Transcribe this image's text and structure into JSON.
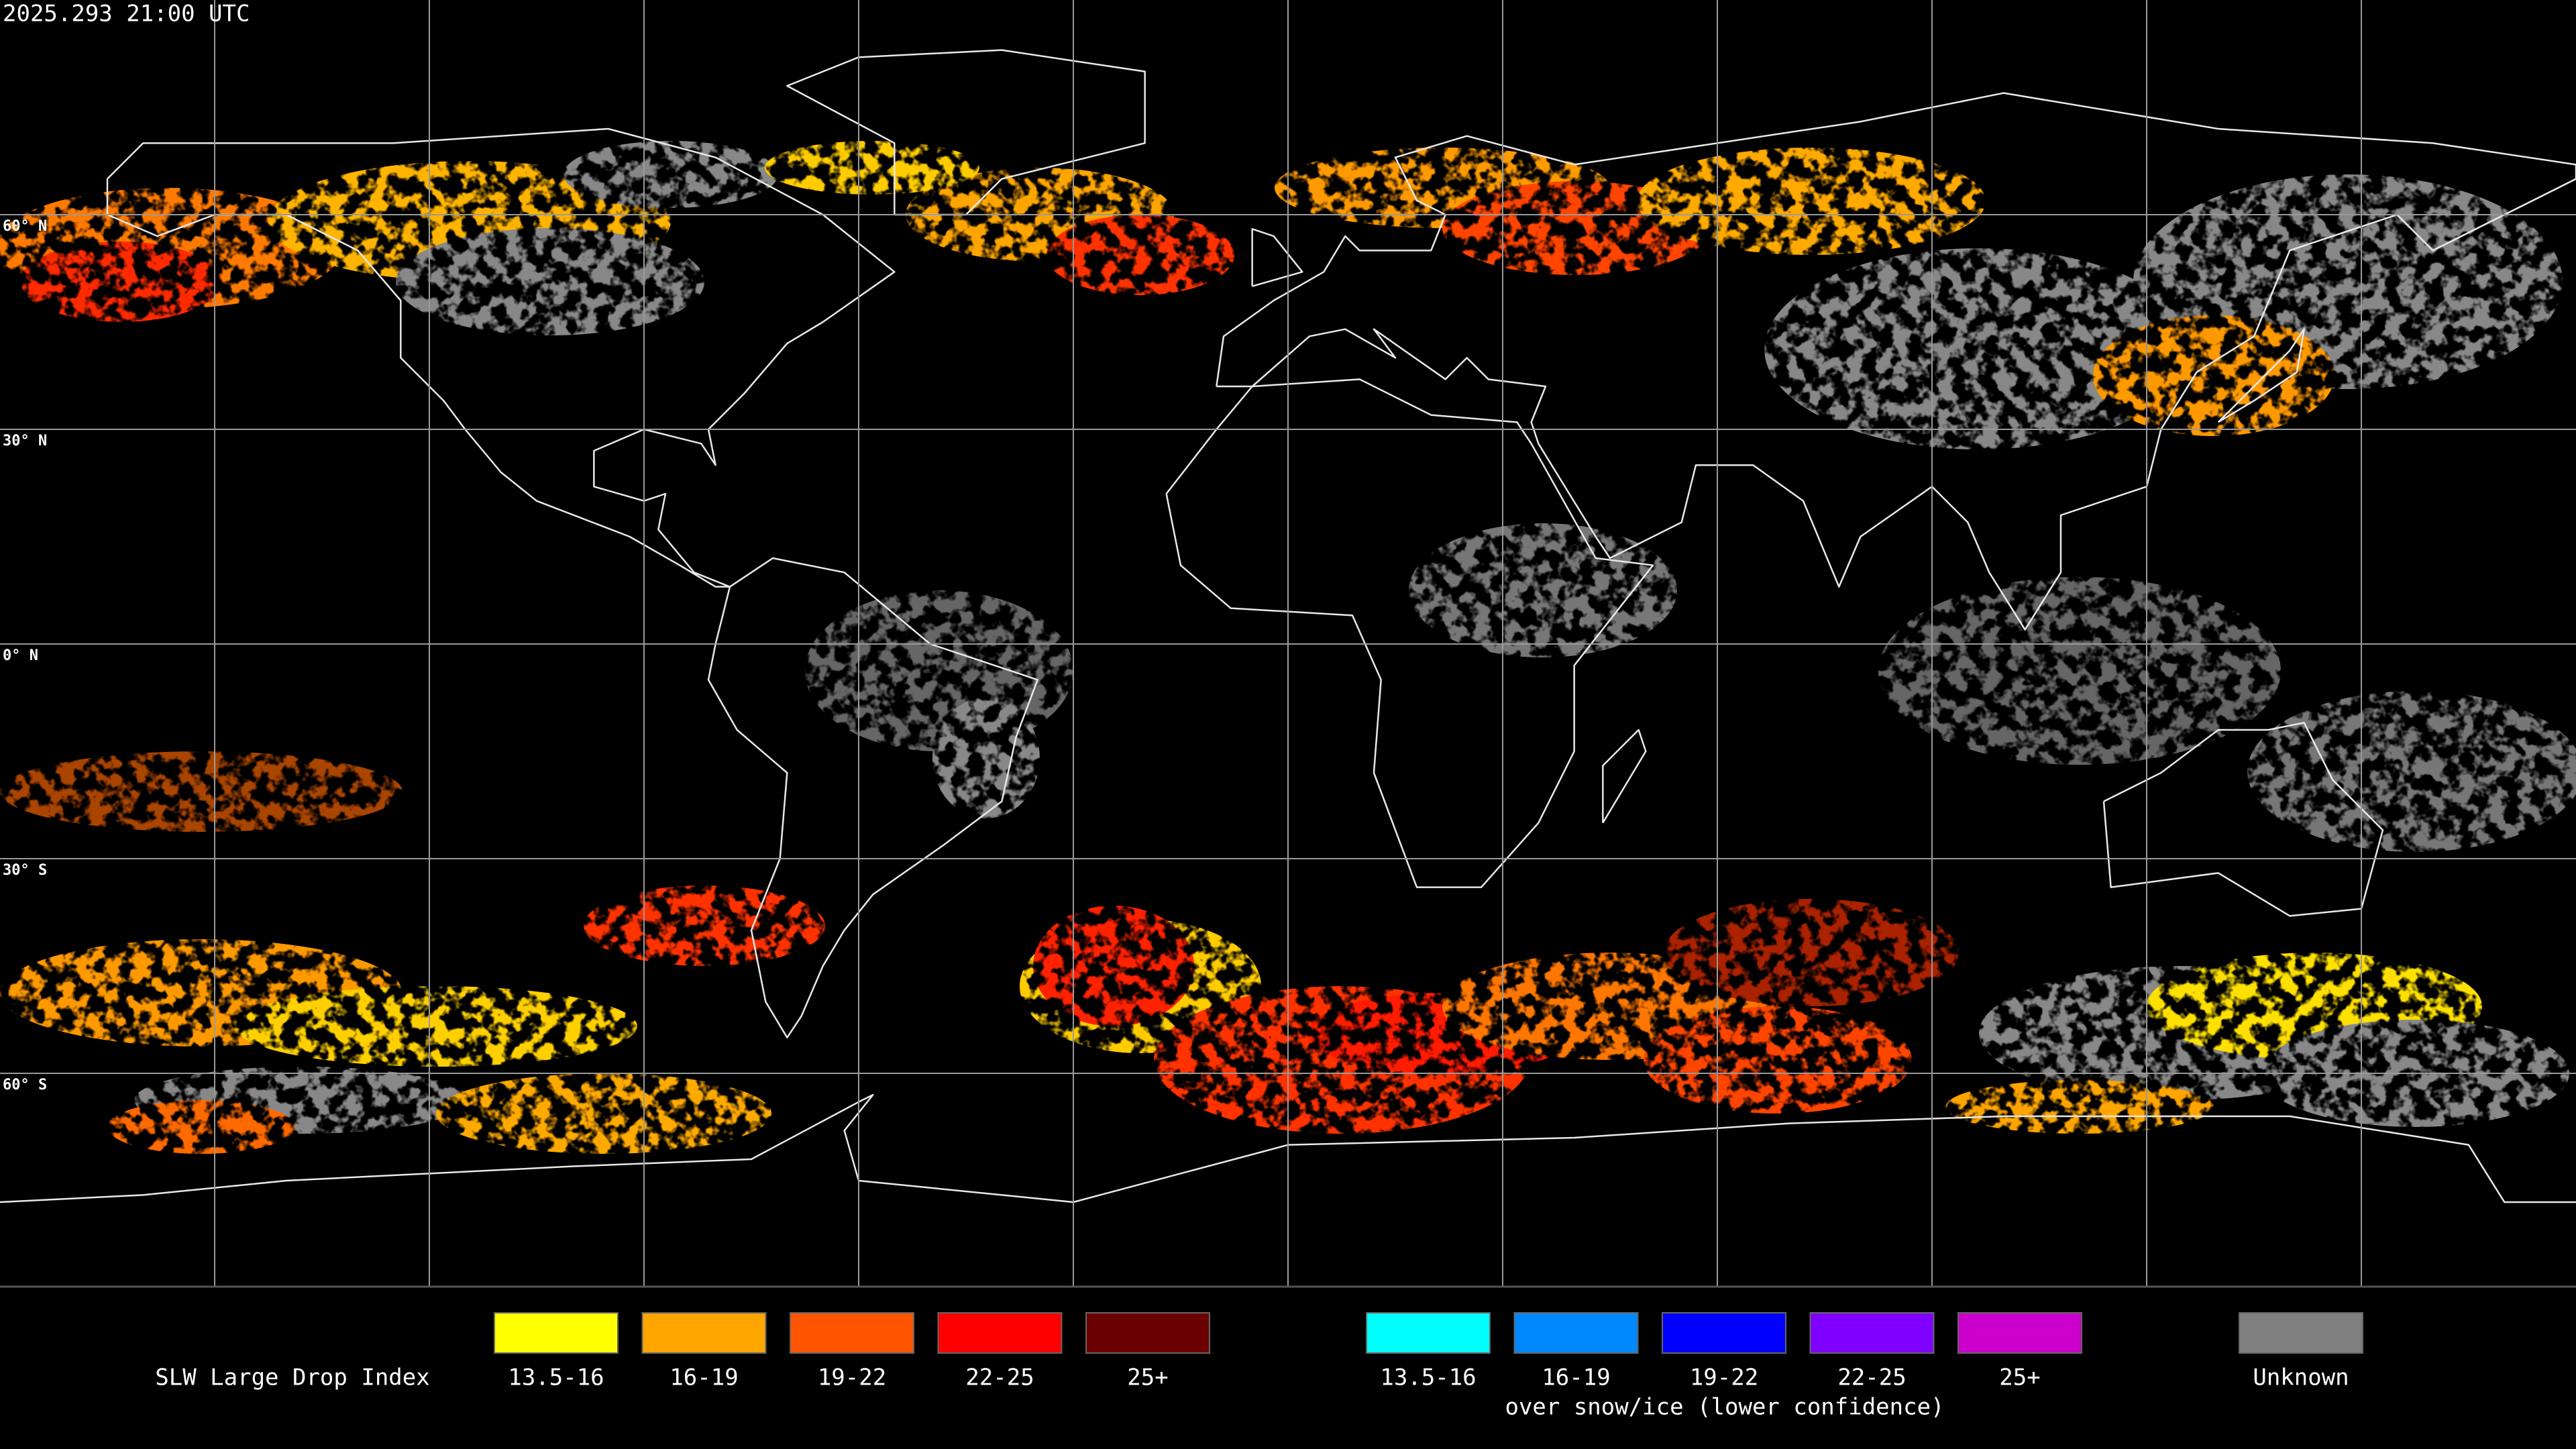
{
  "timestamp": "2025.293 21:00 UTC",
  "latitude_labels": [
    "60° N",
    "30° N",
    "0° N",
    "30° S",
    "60° S"
  ],
  "legend": {
    "title": "SLW Large Drop Index",
    "items": [
      {
        "label": "13.5-16",
        "color": "#ffff00"
      },
      {
        "label": "16-19",
        "color": "#ffa500"
      },
      {
        "label": "19-22",
        "color": "#ff5500"
      },
      {
        "label": "22-25",
        "color": "#ff0000"
      },
      {
        "label": "25+",
        "color": "#6b0000"
      }
    ],
    "snow_items": [
      {
        "label": "13.5-16",
        "color": "#00ffff"
      },
      {
        "label": "16-19",
        "color": "#0088ff"
      },
      {
        "label": "19-22",
        "color": "#0000ff"
      },
      {
        "label": "22-25",
        "color": "#8000ff"
      },
      {
        "label": "25+",
        "color": "#cc00cc"
      }
    ],
    "snow_note": "over snow/ice (lower confidence)",
    "unknown": {
      "label": "Unknown",
      "color": "#808080"
    }
  }
}
